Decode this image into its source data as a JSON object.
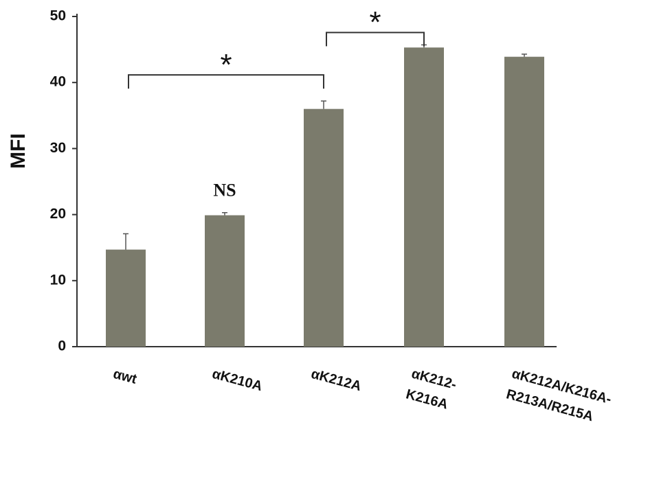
{
  "chart_data": {
    "type": "bar",
    "y_label": "MFI",
    "categories": [
      "αwt",
      "αK210A",
      "αK212A",
      "αK212-\nK216A",
      "αK212A/K216A-\nR213A/R215A"
    ],
    "values": [
      14.7,
      19.9,
      36.0,
      45.3,
      43.9
    ],
    "errors": [
      2.4,
      0.4,
      1.2,
      0.4,
      0.4
    ],
    "color": "#7b7b6c",
    "ylim": [
      0,
      50
    ],
    "yticks": [
      0,
      10,
      20,
      30,
      40,
      50
    ],
    "annotations": [
      {
        "text": "NS",
        "category": "αK210A"
      }
    ],
    "brackets": [
      {
        "label": "*",
        "between": [
          "αwt",
          "αK212A"
        ]
      },
      {
        "label": "*",
        "between": [
          "αK212A",
          "αK212-\nK216A"
        ]
      }
    ]
  }
}
